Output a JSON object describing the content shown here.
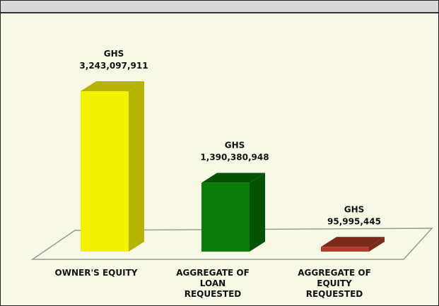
{
  "chart_data": {
    "type": "bar3d",
    "categories": [
      "OWNER'S EQUITY",
      "AGGREGATE OF LOAN REQUESTED",
      "AGGREGATE OF EQUITY REQUESTED"
    ],
    "values": [
      3243097911,
      1390380948,
      95995445
    ],
    "value_labels": [
      "GHS 3,243,097,911",
      "GHS 1,390,380,948",
      "GHS 95,995,445"
    ],
    "colors": [
      "#f2f200",
      "#0a7d0a",
      "#b23a2a"
    ],
    "side_colors": [
      "#b4b400",
      "#055205",
      "#7c2a1c"
    ]
  }
}
